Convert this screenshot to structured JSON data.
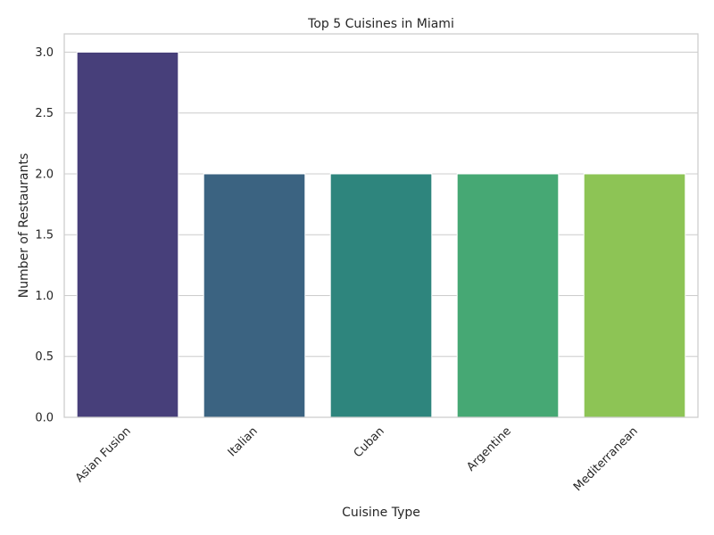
{
  "chart_data": {
    "type": "bar",
    "title": "Top 5 Cuisines in Miami",
    "xlabel": "Cuisine Type",
    "ylabel": "Number of Restaurants",
    "categories": [
      "Asian Fusion",
      "Italian",
      "Cuban",
      "Argentine",
      "Mediterranean"
    ],
    "values": [
      3,
      2,
      2,
      2,
      2
    ],
    "colors": [
      "#473F7A",
      "#3B6381",
      "#2E857D",
      "#46A874",
      "#8DC455"
    ],
    "ylim": [
      0,
      3.15
    ],
    "yticks": [
      0.0,
      0.5,
      1.0,
      1.5,
      2.0,
      2.5,
      3.0
    ],
    "ytick_labels": [
      "0.0",
      "0.5",
      "1.0",
      "1.5",
      "2.0",
      "2.5",
      "3.0"
    ],
    "grid": true,
    "legend": "none"
  }
}
